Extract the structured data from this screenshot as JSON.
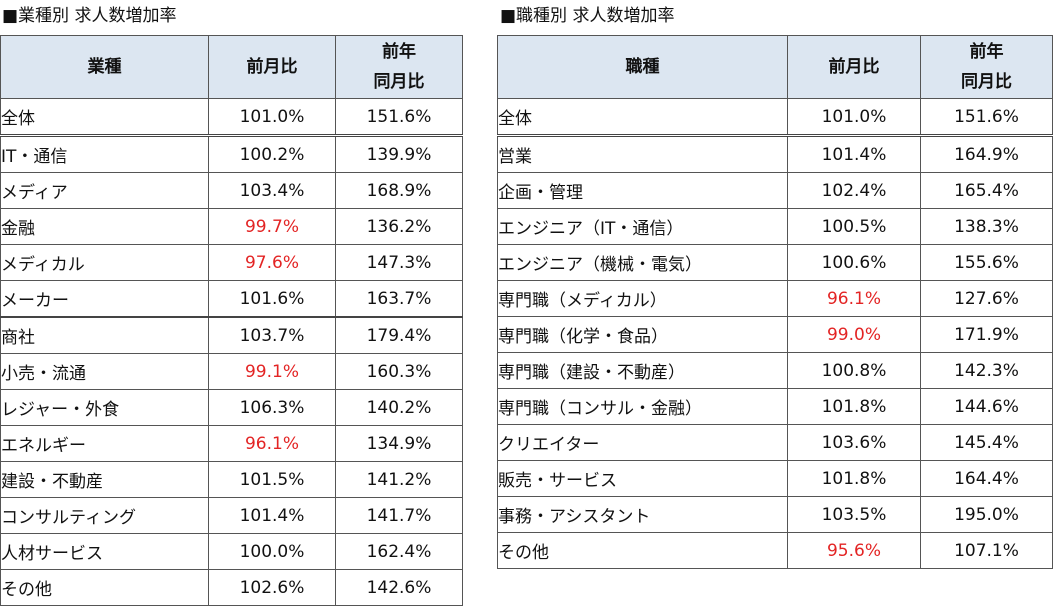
{
  "industry": {
    "title": "■業種別 求人数増加率",
    "headers": {
      "category": "業種",
      "mom": "前月比",
      "yoy_line1": "前年",
      "yoy_line2": "同月比"
    },
    "rows": [
      {
        "label": "全体",
        "mom": "101.0%",
        "yoy": "151.6%",
        "mom_negative": false
      },
      {
        "label": "IT・通信",
        "mom": "100.2%",
        "yoy": "139.9%",
        "mom_negative": false
      },
      {
        "label": "メディア",
        "mom": "103.4%",
        "yoy": "168.9%",
        "mom_negative": false
      },
      {
        "label": "金融",
        "mom": "99.7%",
        "yoy": "136.2%",
        "mom_negative": true
      },
      {
        "label": "メディカル",
        "mom": "97.6%",
        "yoy": "147.3%",
        "mom_negative": true
      },
      {
        "label": "メーカー",
        "mom": "101.6%",
        "yoy": "163.7%",
        "mom_negative": false
      },
      {
        "label": "商社",
        "mom": "103.7%",
        "yoy": "179.4%",
        "mom_negative": false
      },
      {
        "label": "小売・流通",
        "mom": "99.1%",
        "yoy": "160.3%",
        "mom_negative": true
      },
      {
        "label": "レジャー・外食",
        "mom": "106.3%",
        "yoy": "140.2%",
        "mom_negative": false
      },
      {
        "label": "エネルギー",
        "mom": "96.1%",
        "yoy": "134.9%",
        "mom_negative": true
      },
      {
        "label": "建設・不動産",
        "mom": "101.5%",
        "yoy": "141.2%",
        "mom_negative": false
      },
      {
        "label": "コンサルティング",
        "mom": "101.4%",
        "yoy": "141.7%",
        "mom_negative": false
      },
      {
        "label": "人材サービス",
        "mom": "100.0%",
        "yoy": "162.4%",
        "mom_negative": false
      },
      {
        "label": "その他",
        "mom": "102.6%",
        "yoy": "142.6%",
        "mom_negative": false
      }
    ]
  },
  "occupation": {
    "title": "■職種別 求人数増加率",
    "headers": {
      "category": "職種",
      "mom": "前月比",
      "yoy_line1": "前年",
      "yoy_line2": "同月比"
    },
    "rows": [
      {
        "label": "全体",
        "mom": "101.0%",
        "yoy": "151.6%",
        "mom_negative": false
      },
      {
        "label": "営業",
        "mom": "101.4%",
        "yoy": "164.9%",
        "mom_negative": false
      },
      {
        "label": "企画・管理",
        "mom": "102.4%",
        "yoy": "165.4%",
        "mom_negative": false
      },
      {
        "label": "エンジニア（IT・通信）",
        "mom": "100.5%",
        "yoy": "138.3%",
        "mom_negative": false
      },
      {
        "label": "エンジニア（機械・電気）",
        "mom": "100.6%",
        "yoy": "155.6%",
        "mom_negative": false
      },
      {
        "label": "専門職（メディカル）",
        "mom": "96.1%",
        "yoy": "127.6%",
        "mom_negative": true
      },
      {
        "label": "専門職（化学・食品）",
        "mom": "99.0%",
        "yoy": "171.9%",
        "mom_negative": true
      },
      {
        "label": "専門職（建設・不動産）",
        "mom": "100.8%",
        "yoy": "142.3%",
        "mom_negative": false
      },
      {
        "label": "専門職（コンサル・金融）",
        "mom": "101.8%",
        "yoy": "144.6%",
        "mom_negative": false
      },
      {
        "label": "クリエイター",
        "mom": "103.6%",
        "yoy": "145.4%",
        "mom_negative": false
      },
      {
        "label": "販売・サービス",
        "mom": "101.8%",
        "yoy": "164.4%",
        "mom_negative": false
      },
      {
        "label": "事務・アシスタント",
        "mom": "103.5%",
        "yoy": "195.0%",
        "mom_negative": false
      },
      {
        "label": "その他",
        "mom": "95.6%",
        "yoy": "107.1%",
        "mom_negative": true
      }
    ]
  },
  "colors": {
    "header_bg": "#dce6f1",
    "negative": "#e32424",
    "border": "#555555"
  }
}
